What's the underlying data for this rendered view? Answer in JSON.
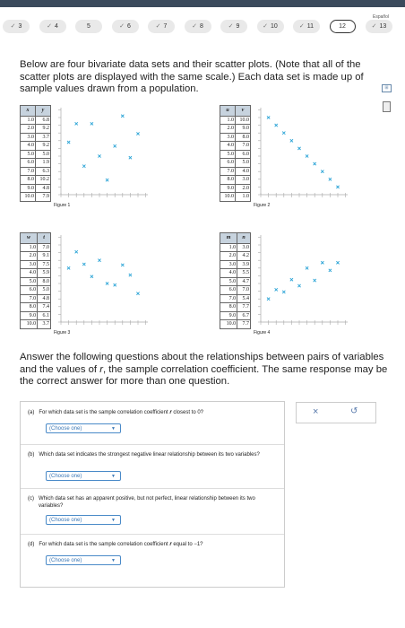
{
  "nav": {
    "items": [
      "3",
      "4",
      "5",
      "6",
      "7",
      "8",
      "9",
      "10",
      "11",
      "12",
      "13"
    ],
    "language": "Español"
  },
  "intro": "Below are four bivariate data sets and their scatter plots. (Note that all of the scatter plots are displayed with the same scale.) Each data set is made up of sample values drawn from a population.",
  "figures": [
    {
      "label": "Figure 1",
      "columns": [
        "x",
        "y"
      ],
      "rows": [
        [
          "1.0",
          "6.8"
        ],
        [
          "2.0",
          "9.2"
        ],
        [
          "3.0",
          "3.7"
        ],
        [
          "4.0",
          "9.2"
        ],
        [
          "5.0",
          "5.0"
        ],
        [
          "6.0",
          "1.9"
        ],
        [
          "7.0",
          "6.3"
        ],
        [
          "8.0",
          "10.2"
        ],
        [
          "9.0",
          "4.8"
        ],
        [
          "10.0",
          "7.9"
        ]
      ]
    },
    {
      "label": "Figure 2",
      "columns": [
        "u",
        "v"
      ],
      "rows": [
        [
          "1.0",
          "10.0"
        ],
        [
          "2.0",
          "9.0"
        ],
        [
          "3.0",
          "8.0"
        ],
        [
          "4.0",
          "7.0"
        ],
        [
          "5.0",
          "6.0"
        ],
        [
          "6.0",
          "5.0"
        ],
        [
          "7.0",
          "4.0"
        ],
        [
          "8.0",
          "3.0"
        ],
        [
          "9.0",
          "2.0"
        ],
        [
          "10.0",
          "1.0"
        ]
      ]
    },
    {
      "label": "Figure 3",
      "columns": [
        "w",
        "t"
      ],
      "rows": [
        [
          "1.0",
          "7.0"
        ],
        [
          "2.0",
          "9.1"
        ],
        [
          "3.0",
          "7.5"
        ],
        [
          "4.0",
          "5.9"
        ],
        [
          "5.0",
          "8.0"
        ],
        [
          "6.0",
          "5.0"
        ],
        [
          "7.0",
          "4.8"
        ],
        [
          "8.0",
          "7.4"
        ],
        [
          "9.0",
          "6.1"
        ],
        [
          "10.0",
          "3.7"
        ]
      ]
    },
    {
      "label": "Figure 4",
      "columns": [
        "m",
        "n"
      ],
      "rows": [
        [
          "1.0",
          "3.0"
        ],
        [
          "2.0",
          "4.2"
        ],
        [
          "3.0",
          "3.9"
        ],
        [
          "4.0",
          "5.5"
        ],
        [
          "5.0",
          "4.7"
        ],
        [
          "6.0",
          "7.0"
        ],
        [
          "7.0",
          "5.4"
        ],
        [
          "8.0",
          "7.7"
        ],
        [
          "9.0",
          "6.7"
        ],
        [
          "10.0",
          "7.7"
        ]
      ]
    }
  ],
  "instructions": [
    "Answer the following questions about the relationships between pairs of variables and the values of ",
    "r",
    ", the sample correlation coefficient. The same response may be the correct answer for more than one question."
  ],
  "questions": [
    {
      "label": "(a)",
      "text": [
        "For which data set is the sample correlation coefficient ",
        "r",
        " closest to 0?"
      ],
      "select": "(Choose one)"
    },
    {
      "label": "(b)",
      "text": [
        "Which data set indicates the strongest negative linear relationship between its two variables?"
      ],
      "select": "(Choose one)"
    },
    {
      "label": "(c)",
      "text": [
        "Which data set has an apparent positive, but not perfect, linear relationship between its two variables?"
      ],
      "select": "(Choose one)"
    },
    {
      "label": "(d)",
      "text": [
        "For which data set is the sample correlation coefficient ",
        "r",
        " equal to −1?"
      ],
      "select": "(Choose one)"
    }
  ]
}
